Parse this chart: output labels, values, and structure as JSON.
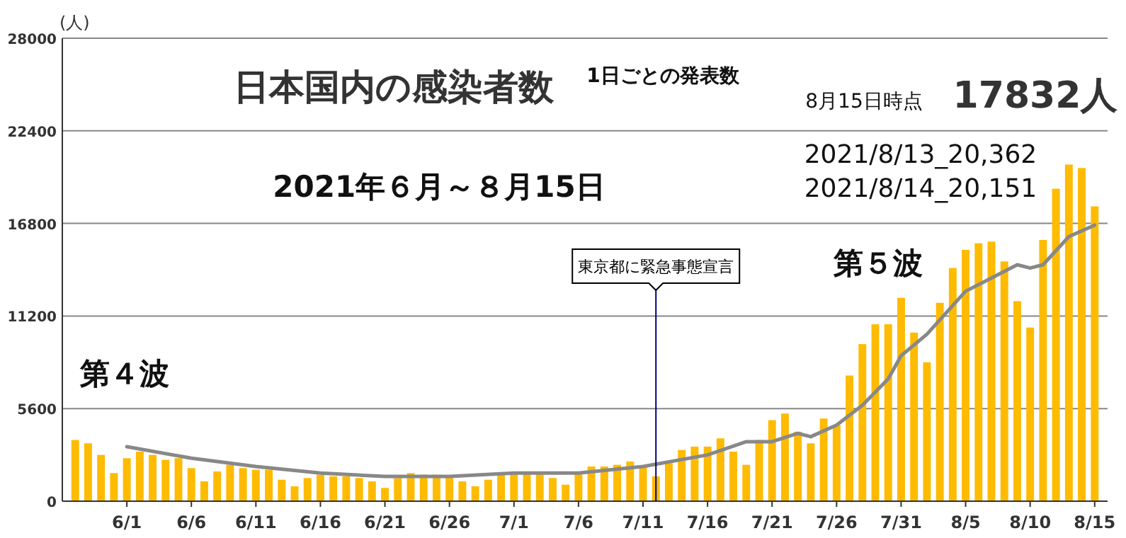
{
  "chart_data": {
    "type": "bar",
    "title": "日本国内の感染者数",
    "subtitle": "1日ごとの発表数",
    "ylabel": "(人)",
    "annotations": [
      "2021年６月～８月15日",
      "8月15日時点",
      "17832人",
      "2021/8/13_20,362",
      "2021/8/14_20,151",
      "第５波",
      "第４波"
    ],
    "x": [
      "--05-28",
      "--05-29",
      "--05-30",
      "--05-31",
      "--06-01",
      "--06-02",
      "--06-03",
      "--06-04",
      "--06-05",
      "--06-06",
      "--06-07",
      "--06-08",
      "--06-09",
      "--06-10",
      "--06-11",
      "--06-12",
      "--06-13",
      "--06-14",
      "--06-15",
      "--06-16",
      "--06-17",
      "--06-18",
      "--06-19",
      "--06-20",
      "--06-21",
      "--06-22",
      "--06-23",
      "--06-24",
      "--06-25",
      "--06-26",
      "--06-27",
      "--06-28",
      "--06-29",
      "--06-30",
      "--07-01",
      "--07-02",
      "--07-03",
      "--07-04",
      "--07-05",
      "--07-06",
      "--07-07",
      "--07-08",
      "--07-09",
      "--07-10",
      "--07-11",
      "--07-12",
      "--07-13",
      "--07-14",
      "--07-15",
      "--07-16",
      "--07-17",
      "--07-18",
      "--07-19",
      "--07-20",
      "--07-21",
      "--07-22",
      "--07-23",
      "--07-24",
      "--07-25",
      "--07-26",
      "--07-27",
      "--07-28",
      "--07-29",
      "--07-30",
      "--07-31",
      "--08-01",
      "--08-02",
      "--08-03",
      "--08-04",
      "--08-05",
      "--08-06",
      "--08-07",
      "--08-08",
      "--08-09",
      "--08-10",
      "--08-11",
      "--08-12",
      "--08-13",
      "--08-14",
      "--08-15"
    ],
    "series": [
      {
        "color": "#ffbb00",
        "values": [
          3700,
          3500,
          2800,
          1700,
          2600,
          3000,
          2800,
          2500,
          2600,
          2000,
          1200,
          1800,
          2200,
          2000,
          1900,
          1900,
          1300,
          900,
          1400,
          1600,
          1500,
          1500,
          1400,
          1200,
          800,
          1400,
          1700,
          1600,
          1600,
          1500,
          1200,
          900,
          1300,
          1700,
          1700,
          1700,
          1800,
          1400,
          1000,
          1700,
          2100,
          2100,
          2200,
          2400,
          2100,
          1500,
          2300,
          3100,
          3300,
          3300,
          3800,
          3000,
          2200,
          3700,
          4900,
          5300,
          4200,
          3500,
          5000,
          4600,
          7600,
          9500,
          10700,
          10700,
          12300,
          10200,
          8400,
          12000,
          14100,
          15200,
          15600,
          15700,
          14500,
          12100,
          10500,
          15800,
          18900,
          20362,
          20151,
          17832
        ]
      },
      {
        "type": "line",
        "color": "#888888",
        "x": [
          "--06-01",
          "--06-06",
          "--06-11",
          "--06-16",
          "--06-21",
          "--06-26",
          "--07-01",
          "--07-06",
          "--07-11",
          "--07-16",
          "--07-19",
          "--07-21",
          "--07-23",
          "--07-24",
          "--07-26",
          "--07-28",
          "--07-30",
          "--07-31",
          "--08-02",
          "--08-05",
          "--08-07",
          "--08-09",
          "--08-10",
          "--08-11",
          "--08-13",
          "--08-15"
        ],
        "values": [
          3300,
          2600,
          2100,
          1700,
          1500,
          1500,
          1700,
          1700,
          2100,
          2800,
          3600,
          3600,
          4100,
          3900,
          4600,
          5800,
          7400,
          8800,
          10100,
          12700,
          13500,
          14300,
          14100,
          14300,
          16000,
          16700
        ]
      }
    ],
    "xlim": [
      "--05-27",
      "--08-16"
    ],
    "ylim": [
      0,
      28000
    ],
    "yticks": [
      0,
      5600,
      11200,
      16800,
      22400,
      28000
    ],
    "xticks": [
      {
        "value": "--06-01",
        "label": "6/1"
      },
      {
        "value": "--06-06",
        "label": "6/6"
      },
      {
        "value": "--06-11",
        "label": "6/11"
      },
      {
        "value": "--06-16",
        "label": "6/16"
      },
      {
        "value": "--06-21",
        "label": "6/21"
      },
      {
        "value": "--06-26",
        "label": "6/26"
      },
      {
        "value": "--07-01",
        "label": "7/1"
      },
      {
        "value": "--07-06",
        "label": "7/6"
      },
      {
        "value": "--07-11",
        "label": "7/11"
      },
      {
        "value": "--07-16",
        "label": "7/16"
      },
      {
        "value": "--07-21",
        "label": "7/21"
      },
      {
        "value": "--07-26",
        "label": "7/26"
      },
      {
        "value": "--07-31",
        "label": "7/31"
      },
      {
        "value": "--08-05",
        "label": "8/5"
      },
      {
        "value": "--08-10",
        "label": "8/10"
      },
      {
        "value": "--08-15",
        "label": "8/15"
      }
    ],
    "grid": "y",
    "ref_lines": [
      {
        "axis": "x",
        "value": "--07-12",
        "label": "東京都に緊急事態宣言",
        "color": "#000080"
      }
    ]
  }
}
